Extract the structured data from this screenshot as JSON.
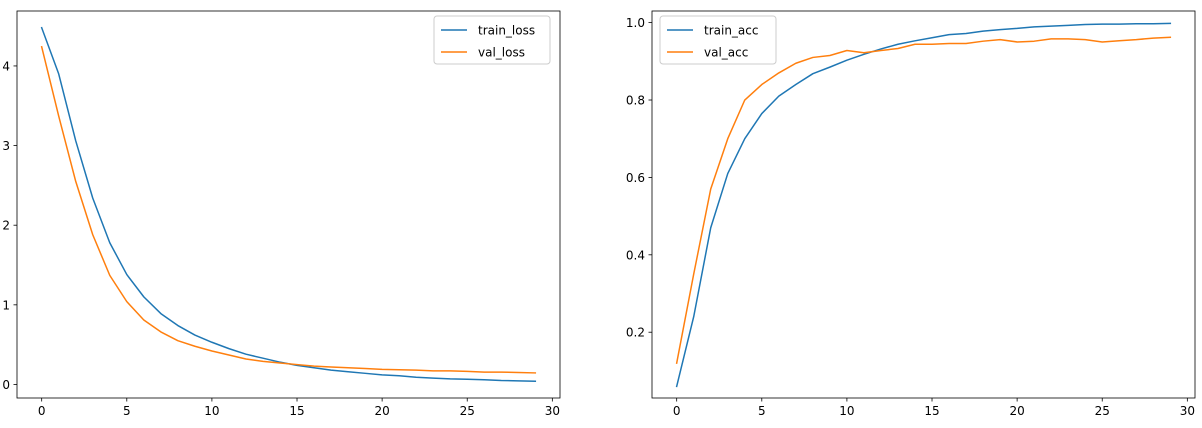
{
  "chart_data": [
    {
      "type": "line",
      "title": "",
      "xlabel": "",
      "ylabel": "",
      "xlim": [
        -1.45,
        30.45
      ],
      "ylim": [
        -0.17,
        4.69
      ],
      "xticks": [
        0,
        5,
        10,
        15,
        20,
        25,
        30
      ],
      "yticks": [
        0,
        1,
        2,
        3,
        4
      ],
      "legend": "top-right",
      "x": [
        0,
        1,
        2,
        3,
        4,
        5,
        6,
        7,
        8,
        9,
        10,
        11,
        12,
        13,
        14,
        15,
        16,
        17,
        18,
        19,
        20,
        21,
        22,
        23,
        24,
        25,
        26,
        27,
        28,
        29
      ],
      "series": [
        {
          "name": "train_loss",
          "color": "#1f77b4",
          "values": [
            4.48,
            3.9,
            3.06,
            2.34,
            1.78,
            1.38,
            1.1,
            0.89,
            0.74,
            0.62,
            0.53,
            0.45,
            0.38,
            0.33,
            0.28,
            0.24,
            0.21,
            0.18,
            0.16,
            0.14,
            0.12,
            0.11,
            0.09,
            0.08,
            0.07,
            0.065,
            0.06,
            0.05,
            0.045,
            0.04
          ]
        },
        {
          "name": "val_loss",
          "color": "#ff7f0e",
          "values": [
            4.24,
            3.37,
            2.55,
            1.88,
            1.37,
            1.04,
            0.81,
            0.66,
            0.55,
            0.48,
            0.42,
            0.37,
            0.32,
            0.29,
            0.27,
            0.25,
            0.23,
            0.22,
            0.21,
            0.2,
            0.19,
            0.185,
            0.18,
            0.17,
            0.17,
            0.165,
            0.155,
            0.155,
            0.15,
            0.145
          ]
        }
      ]
    },
    {
      "type": "line",
      "title": "",
      "xlabel": "",
      "ylabel": "",
      "xlim": [
        -1.45,
        30.45
      ],
      "ylim": [
        0.03,
        1.03
      ],
      "xticks": [
        0,
        5,
        10,
        15,
        20,
        25,
        30
      ],
      "yticks": [
        0.2,
        0.4,
        0.6,
        0.8,
        1.0
      ],
      "yticklabels": [
        "0.2",
        "0.4",
        "0.6",
        "0.8",
        "1.0"
      ],
      "legend": "top-left",
      "x": [
        0,
        1,
        2,
        3,
        4,
        5,
        6,
        7,
        8,
        9,
        10,
        11,
        12,
        13,
        14,
        15,
        16,
        17,
        18,
        19,
        20,
        21,
        22,
        23,
        24,
        25,
        26,
        27,
        28,
        29
      ],
      "series": [
        {
          "name": "train_acc",
          "color": "#1f77b4",
          "values": [
            0.06,
            0.24,
            0.47,
            0.61,
            0.7,
            0.765,
            0.81,
            0.84,
            0.868,
            0.885,
            0.903,
            0.918,
            0.932,
            0.944,
            0.953,
            0.961,
            0.969,
            0.972,
            0.978,
            0.982,
            0.985,
            0.989,
            0.991,
            0.993,
            0.995,
            0.996,
            0.996,
            0.997,
            0.997,
            0.998
          ]
        },
        {
          "name": "val_acc",
          "color": "#ff7f0e",
          "values": [
            0.12,
            0.35,
            0.57,
            0.7,
            0.8,
            0.84,
            0.87,
            0.895,
            0.91,
            0.915,
            0.928,
            0.922,
            0.928,
            0.933,
            0.944,
            0.944,
            0.946,
            0.946,
            0.952,
            0.956,
            0.95,
            0.952,
            0.958,
            0.958,
            0.956,
            0.95,
            0.953,
            0.956,
            0.96,
            0.962
          ]
        }
      ]
    }
  ]
}
